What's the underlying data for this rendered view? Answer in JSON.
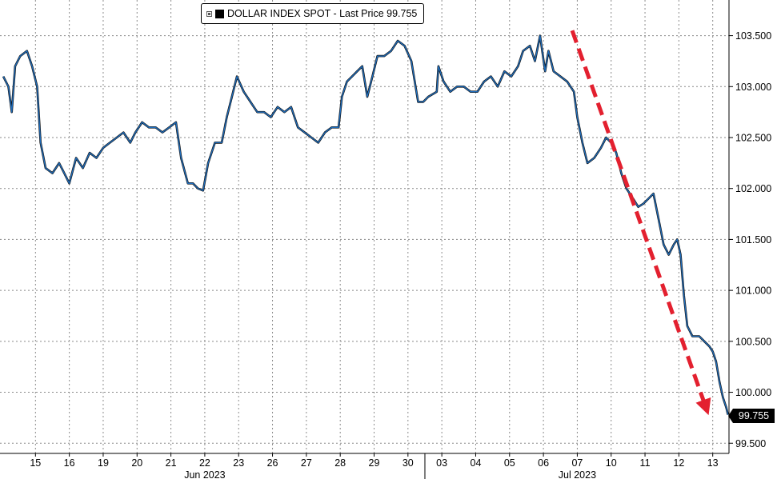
{
  "chart_data": {
    "type": "line",
    "legend": {
      "label": "DOLLAR INDEX SPOT - Last Price 99.755"
    },
    "last_price_label": "99.755",
    "y_ticks": [
      {
        "value": 99.5,
        "label": "99.500"
      },
      {
        "value": 100.0,
        "label": "100.000"
      },
      {
        "value": 100.5,
        "label": "100.500"
      },
      {
        "value": 101.0,
        "label": "101.000"
      },
      {
        "value": 101.5,
        "label": "101.500"
      },
      {
        "value": 102.0,
        "label": "102.000"
      },
      {
        "value": 102.5,
        "label": "102.500"
      },
      {
        "value": 103.0,
        "label": "103.000"
      },
      {
        "value": 103.5,
        "label": "103.500"
      }
    ],
    "ylim": [
      99.4,
      103.85
    ],
    "x_ticks": [
      {
        "i": 1,
        "label": "15"
      },
      {
        "i": 2,
        "label": "16"
      },
      {
        "i": 3,
        "label": "19"
      },
      {
        "i": 4,
        "label": "20"
      },
      {
        "i": 5,
        "label": "21"
      },
      {
        "i": 6,
        "label": "22"
      },
      {
        "i": 7,
        "label": "23"
      },
      {
        "i": 8,
        "label": "26"
      },
      {
        "i": 9,
        "label": "27"
      },
      {
        "i": 10,
        "label": "28"
      },
      {
        "i": 11,
        "label": "29"
      },
      {
        "i": 12,
        "label": "30"
      },
      {
        "i": 13,
        "label": "03"
      },
      {
        "i": 14,
        "label": "04"
      },
      {
        "i": 15,
        "label": "05"
      },
      {
        "i": 16,
        "label": "06"
      },
      {
        "i": 17,
        "label": "07"
      },
      {
        "i": 18,
        "label": "10"
      },
      {
        "i": 19,
        "label": "11"
      },
      {
        "i": 20,
        "label": "12"
      },
      {
        "i": 21,
        "label": "13"
      }
    ],
    "month_labels": [
      {
        "i": 6.0,
        "label": "Jun 2023"
      },
      {
        "i": 17.0,
        "label": "Jul 2023"
      }
    ],
    "month_separator_i": 12.5,
    "x_range": [
      0.05,
      21.45
    ],
    "series": [
      {
        "color": "#1f6fc0",
        "points": [
          [
            0.05,
            103.1
          ],
          [
            0.2,
            103.0
          ],
          [
            0.3,
            102.75
          ],
          [
            0.4,
            103.2
          ],
          [
            0.55,
            103.3
          ],
          [
            0.75,
            103.35
          ],
          [
            0.9,
            103.2
          ],
          [
            1.05,
            103.0
          ],
          [
            1.15,
            102.45
          ],
          [
            1.3,
            102.2
          ],
          [
            1.5,
            102.15
          ],
          [
            1.7,
            102.25
          ],
          [
            1.85,
            102.15
          ],
          [
            2.0,
            102.05
          ],
          [
            2.2,
            102.3
          ],
          [
            2.4,
            102.2
          ],
          [
            2.6,
            102.35
          ],
          [
            2.8,
            102.3
          ],
          [
            3.0,
            102.4
          ],
          [
            3.2,
            102.45
          ],
          [
            3.4,
            102.5
          ],
          [
            3.6,
            102.55
          ],
          [
            3.8,
            102.45
          ],
          [
            3.95,
            102.55
          ],
          [
            4.15,
            102.65
          ],
          [
            4.35,
            102.6
          ],
          [
            4.55,
            102.6
          ],
          [
            4.75,
            102.55
          ],
          [
            4.95,
            102.6
          ],
          [
            5.15,
            102.65
          ],
          [
            5.3,
            102.3
          ],
          [
            5.5,
            102.05
          ],
          [
            5.65,
            102.05
          ],
          [
            5.8,
            102.0
          ],
          [
            5.95,
            101.98
          ],
          [
            6.1,
            102.25
          ],
          [
            6.3,
            102.45
          ],
          [
            6.5,
            102.45
          ],
          [
            6.65,
            102.7
          ],
          [
            6.8,
            102.9
          ],
          [
            6.95,
            103.1
          ],
          [
            7.15,
            102.95
          ],
          [
            7.35,
            102.85
          ],
          [
            7.55,
            102.75
          ],
          [
            7.75,
            102.75
          ],
          [
            7.95,
            102.7
          ],
          [
            8.15,
            102.8
          ],
          [
            8.35,
            102.75
          ],
          [
            8.55,
            102.8
          ],
          [
            8.75,
            102.6
          ],
          [
            8.95,
            102.55
          ],
          [
            9.15,
            102.5
          ],
          [
            9.35,
            102.45
          ],
          [
            9.55,
            102.55
          ],
          [
            9.75,
            102.6
          ],
          [
            9.95,
            102.6
          ],
          [
            10.05,
            102.9
          ],
          [
            10.2,
            103.05
          ],
          [
            10.35,
            103.1
          ],
          [
            10.5,
            103.15
          ],
          [
            10.65,
            103.2
          ],
          [
            10.8,
            102.9
          ],
          [
            10.95,
            103.1
          ],
          [
            11.1,
            103.3
          ],
          [
            11.3,
            103.3
          ],
          [
            11.5,
            103.35
          ],
          [
            11.7,
            103.45
          ],
          [
            11.9,
            103.4
          ],
          [
            12.1,
            103.25
          ],
          [
            12.3,
            102.85
          ],
          [
            12.45,
            102.85
          ],
          [
            12.6,
            102.9
          ],
          [
            12.85,
            102.95
          ],
          [
            12.9,
            103.2
          ],
          [
            13.05,
            103.05
          ],
          [
            13.25,
            102.95
          ],
          [
            13.45,
            103.0
          ],
          [
            13.65,
            103.0
          ],
          [
            13.85,
            102.95
          ],
          [
            14.05,
            102.95
          ],
          [
            14.25,
            103.05
          ],
          [
            14.45,
            103.1
          ],
          [
            14.65,
            103.0
          ],
          [
            14.85,
            103.15
          ],
          [
            15.05,
            103.1
          ],
          [
            15.25,
            103.2
          ],
          [
            15.4,
            103.35
          ],
          [
            15.6,
            103.4
          ],
          [
            15.75,
            103.25
          ],
          [
            15.9,
            103.5
          ],
          [
            16.05,
            103.15
          ],
          [
            16.15,
            103.35
          ],
          [
            16.3,
            103.15
          ],
          [
            16.5,
            103.1
          ],
          [
            16.7,
            103.05
          ],
          [
            16.9,
            102.95
          ],
          [
            17.0,
            102.7
          ],
          [
            17.15,
            102.45
          ],
          [
            17.3,
            102.25
          ],
          [
            17.5,
            102.3
          ],
          [
            17.7,
            102.4
          ],
          [
            17.85,
            102.5
          ],
          [
            18.0,
            102.45
          ],
          [
            18.15,
            102.35
          ],
          [
            18.3,
            102.15
          ],
          [
            18.45,
            102.0
          ],
          [
            18.65,
            101.9
          ],
          [
            18.8,
            101.82
          ],
          [
            18.95,
            101.85
          ],
          [
            19.1,
            101.9
          ],
          [
            19.25,
            101.95
          ],
          [
            19.4,
            101.7
          ],
          [
            19.55,
            101.45
          ],
          [
            19.7,
            101.35
          ],
          [
            19.85,
            101.45
          ],
          [
            19.95,
            101.5
          ],
          [
            20.05,
            101.35
          ],
          [
            20.15,
            100.95
          ],
          [
            20.25,
            100.65
          ],
          [
            20.4,
            100.55
          ],
          [
            20.6,
            100.55
          ],
          [
            20.75,
            100.5
          ],
          [
            20.9,
            100.45
          ],
          [
            21.0,
            100.4
          ],
          [
            21.1,
            100.3
          ],
          [
            21.2,
            100.1
          ],
          [
            21.3,
            99.95
          ],
          [
            21.4,
            99.85
          ],
          [
            21.45,
            99.78
          ]
        ]
      }
    ],
    "annotation": {
      "type": "dashed-arrow",
      "color": "#e3202f",
      "from": {
        "i": 16.85,
        "y": 103.55
      },
      "to": {
        "i": 20.8,
        "y": 99.85
      }
    }
  }
}
